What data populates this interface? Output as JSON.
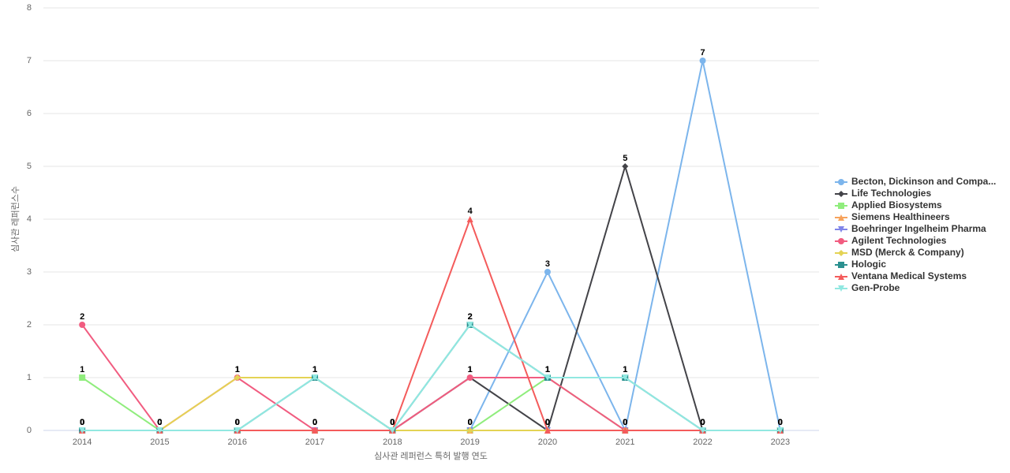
{
  "chart_data": {
    "type": "line",
    "x_label": "심사관 레퍼런스 특허 발행 연도",
    "y_label": "심사관 레퍼런스수",
    "categories": [
      "2014",
      "2015",
      "2016",
      "2017",
      "2018",
      "2019",
      "2020",
      "2021",
      "2022",
      "2023"
    ],
    "ylim": [
      0,
      8
    ],
    "yticks": [
      0,
      1,
      2,
      3,
      4,
      5,
      6,
      7,
      8
    ],
    "grid": true,
    "legend": "right",
    "series": [
      {
        "name": "Becton, Dickinson and Compa...",
        "color": "#7cb5ec",
        "marker": "circle",
        "values": [
          0,
          0,
          0,
          0,
          0,
          0,
          3,
          0,
          7,
          0
        ]
      },
      {
        "name": "Life Technologies",
        "color": "#434348",
        "marker": "diamond",
        "values": [
          0,
          0,
          0,
          0,
          0,
          1,
          0,
          5,
          0,
          0
        ]
      },
      {
        "name": "Applied Biosystems",
        "color": "#90ed7d",
        "marker": "square",
        "values": [
          1,
          0,
          0,
          0,
          0,
          0,
          1,
          0,
          0,
          0
        ]
      },
      {
        "name": "Siemens Healthineers",
        "color": "#f7a35c",
        "marker": "triangle",
        "values": [
          0,
          0,
          0,
          0,
          0,
          0,
          0,
          0,
          0,
          0
        ]
      },
      {
        "name": "Boehringer Ingelheim Pharma",
        "color": "#8085e9",
        "marker": "triangle-down",
        "values": [
          0,
          0,
          0,
          0,
          0,
          0,
          0,
          0,
          0,
          0
        ]
      },
      {
        "name": "Agilent Technologies",
        "color": "#f15c80",
        "marker": "circle",
        "values": [
          2,
          0,
          1,
          0,
          0,
          1,
          1,
          0,
          0,
          0
        ]
      },
      {
        "name": "MSD (Merck & Company)",
        "color": "#e4d354",
        "marker": "diamond",
        "values": [
          0,
          0,
          1,
          1,
          0,
          0,
          0,
          0,
          0,
          0
        ]
      },
      {
        "name": "Hologic",
        "color": "#2b908f",
        "marker": "square",
        "values": [
          0,
          0,
          0,
          1,
          0,
          2,
          1,
          1,
          0,
          0
        ]
      },
      {
        "name": "Ventana Medical Systems",
        "color": "#f45b5b",
        "marker": "triangle",
        "values": [
          0,
          0,
          0,
          0,
          0,
          4,
          0,
          0,
          0,
          0
        ]
      },
      {
        "name": "Gen-Probe",
        "color": "#91e8e1",
        "marker": "triangle-down",
        "values": [
          0,
          0,
          0,
          1,
          0,
          2,
          1,
          1,
          0,
          0
        ]
      }
    ]
  }
}
